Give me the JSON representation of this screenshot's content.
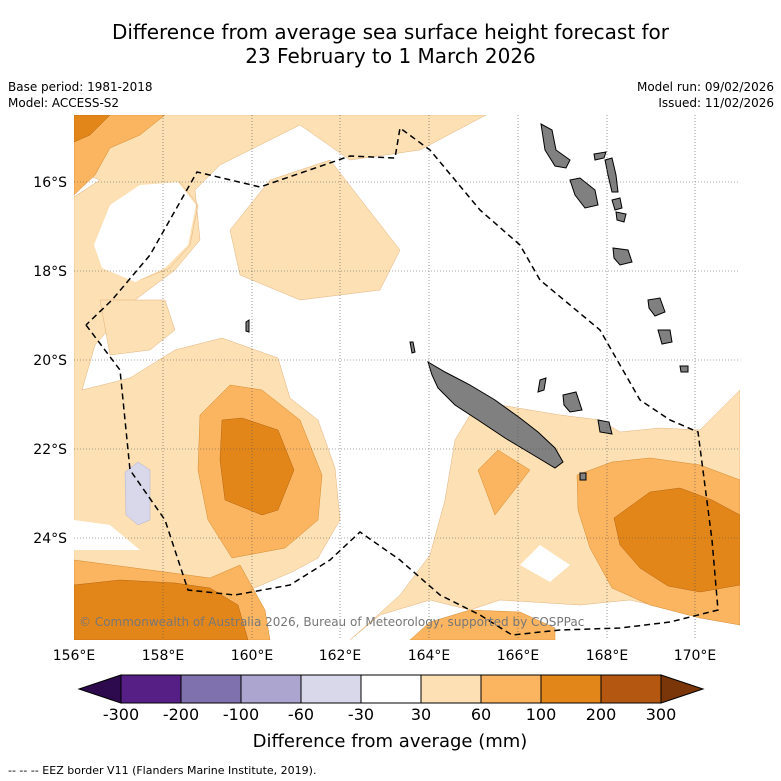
{
  "title": {
    "line1": "Difference from average sea surface height forecast for",
    "line2": "23 February to 1 March 2026"
  },
  "meta": {
    "base_period": "Base period: 1981-2018",
    "model": "Model: ACCESS-S2",
    "model_run": "Model run: 09/02/2026",
    "issued": "Issued: 11/02/2026"
  },
  "map": {
    "lon_ticks": [
      "156°E",
      "158°E",
      "160°E",
      "162°E",
      "164°E",
      "166°E",
      "168°E",
      "170°E"
    ],
    "lat_ticks": [
      "16°S",
      "18°S",
      "20°S",
      "22°S",
      "24°S"
    ],
    "copyright": "© Commonwealth of Australia 2026, Bureau of Meteorology, supported by COSPPac"
  },
  "colorbar": {
    "labels": [
      "-300",
      "-200",
      "-100",
      "-60",
      "-30",
      "30",
      "60",
      "100",
      "200",
      "300"
    ],
    "colors": [
      "#551f86",
      "#7f71ad",
      "#aba5cf",
      "#d8d8ea",
      "#ffffff",
      "#fde0b3",
      "#fbb560",
      "#e3861a",
      "#b45711"
    ],
    "extend_low_color": "#2d0a4d",
    "extend_high_color": "#7a3608",
    "title": "Difference from average (mm)"
  },
  "colors": {
    "land": "#808080",
    "grid": "#555555"
  },
  "footer": "-- -- -- EEZ border V11 (Flanders Marine Institute, 2019)."
}
